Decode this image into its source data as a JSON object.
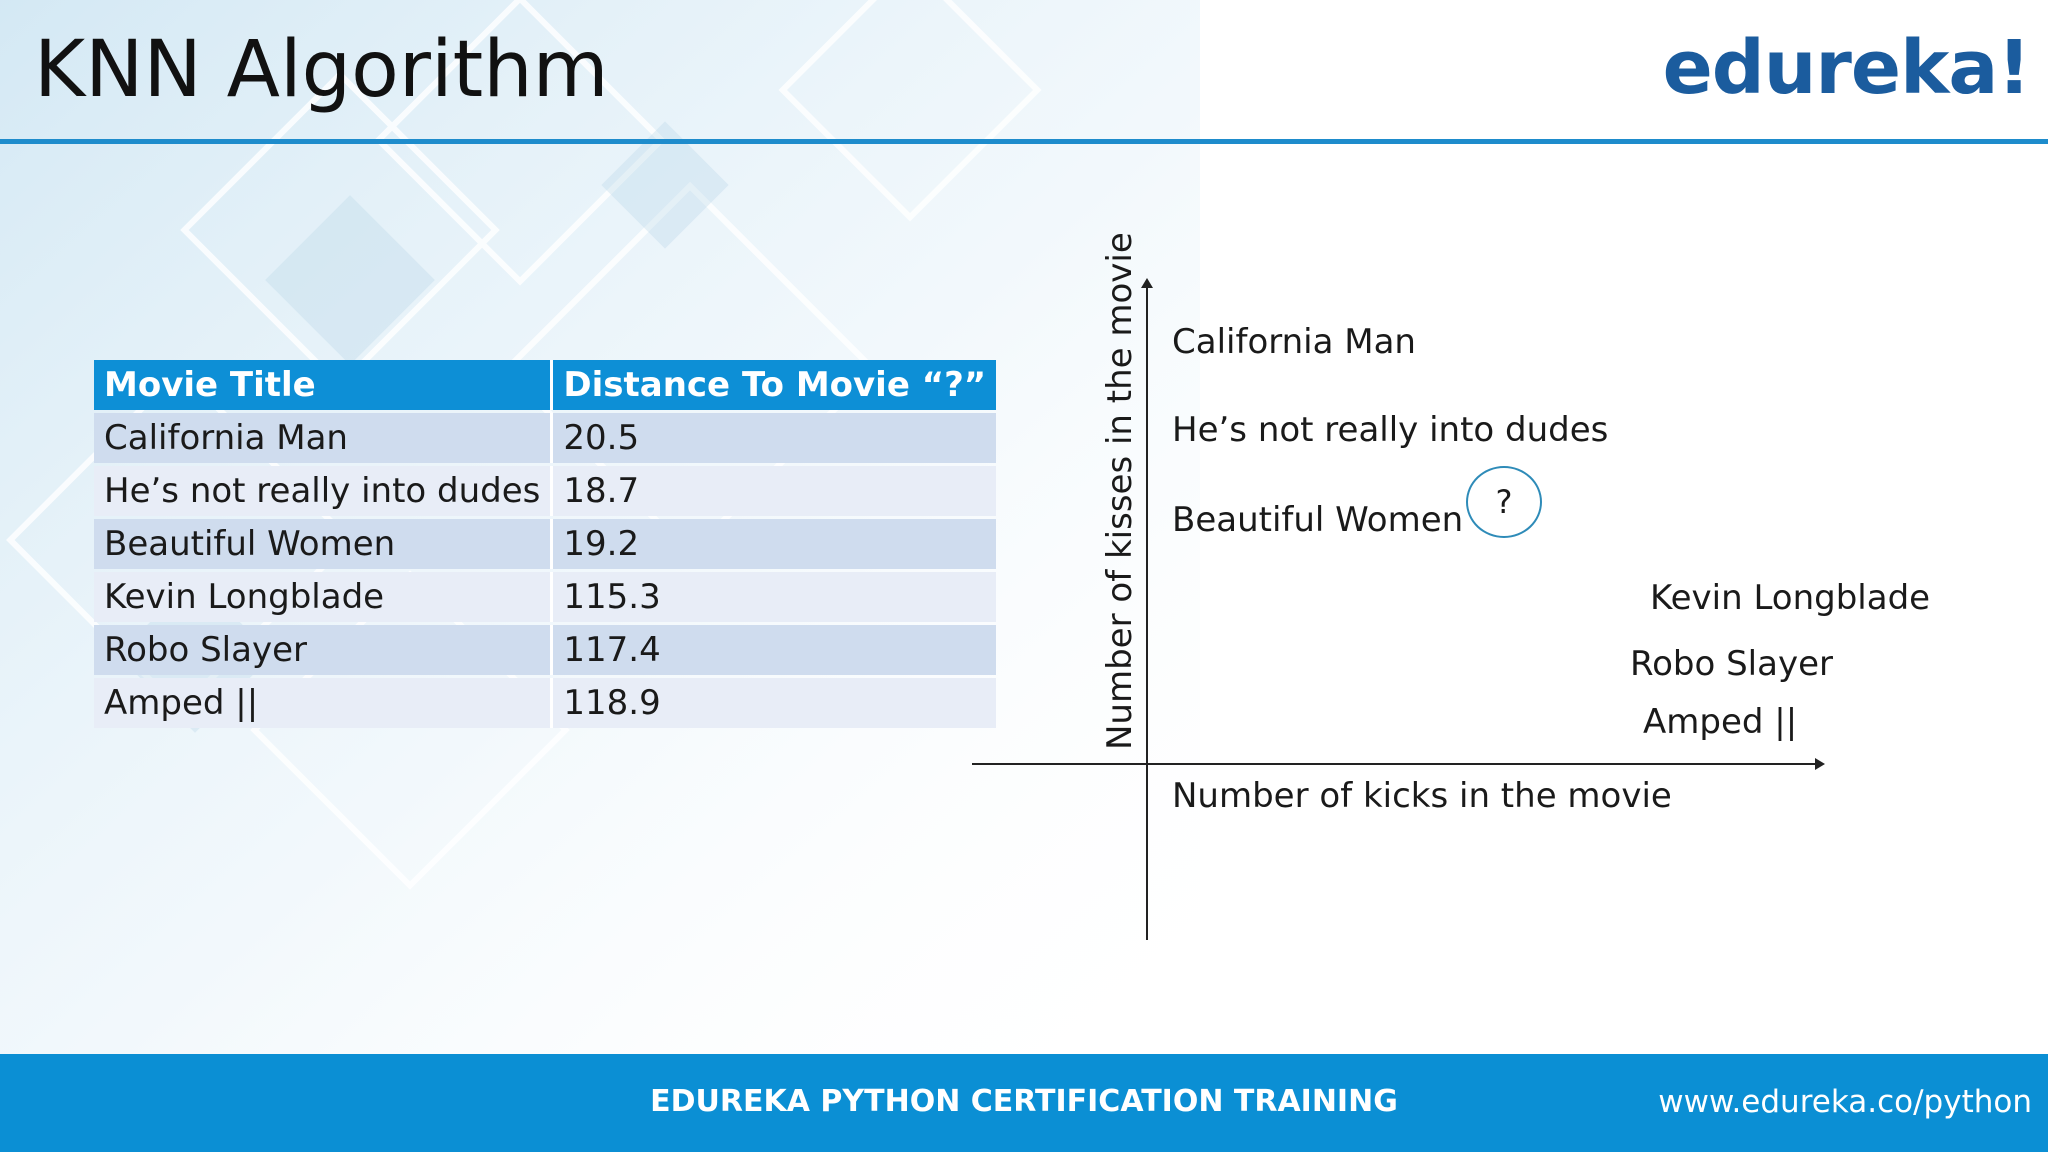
{
  "slide": {
    "title": "KNN Algorithm",
    "brand": "edureka!"
  },
  "table": {
    "headers": [
      "Movie Title",
      "Distance To Movie “?”"
    ],
    "rows": [
      {
        "title": "California Man",
        "distance": "20.5"
      },
      {
        "title": "He’s not really into dudes",
        "distance": "18.7"
      },
      {
        "title": "Beautiful Women",
        "distance": "19.2"
      },
      {
        "title": "Kevin Longblade",
        "distance": "115.3"
      },
      {
        "title": "Robo Slayer",
        "distance": "117.4"
      },
      {
        "title": "Amped ||",
        "distance": "118.9"
      }
    ]
  },
  "diagram": {
    "y_axis_label": "Number of kisses in the movie",
    "x_axis_label": "Number of kicks in the movie",
    "points": [
      "California Man",
      "He’s not really into dudes",
      "Beautiful Women",
      "Kevin Longblade",
      "Robo Slayer",
      "Amped ||"
    ],
    "query_label": "?"
  },
  "footer": {
    "course": "EDUREKA PYTHON CERTIFICATION TRAINING",
    "url": "www.edureka.co/python"
  },
  "colors": {
    "accent": "#1e8ccc",
    "header_fill": "#0d8fd6",
    "footer_fill": "#0b8fd4",
    "brand": "#1b5c9e",
    "row_dark": "#cfdcee",
    "row_light": "#e8edf7",
    "query_circle": "#2e8bb8"
  }
}
